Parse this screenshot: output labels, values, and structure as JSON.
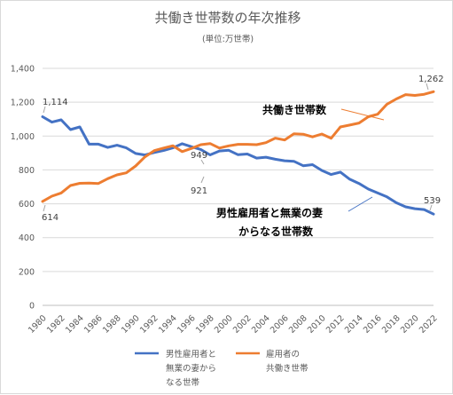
{
  "chart_data": {
    "type": "line",
    "title": "共働き世帯数の年次推移",
    "subtitle": "(単位:万世帯)",
    "x": [
      1980,
      1981,
      1982,
      1983,
      1984,
      1985,
      1986,
      1987,
      1988,
      1989,
      1990,
      1991,
      1992,
      1993,
      1994,
      1995,
      1996,
      1997,
      1998,
      1999,
      2000,
      2001,
      2002,
      2003,
      2004,
      2005,
      2006,
      2007,
      2008,
      2009,
      2010,
      2011,
      2012,
      2013,
      2014,
      2015,
      2016,
      2017,
      2018,
      2019,
      2020,
      2021,
      2022
    ],
    "x_tick_labels": [
      "1980",
      "1982",
      "1984",
      "1986",
      "1988",
      "1990",
      "1992",
      "1994",
      "1996",
      "1998",
      "2000",
      "2002",
      "2004",
      "2006",
      "2008",
      "2010",
      "2012",
      "2014",
      "2016",
      "2018",
      "2020",
      "2022"
    ],
    "y_tick_labels": [
      "0",
      "200",
      "400",
      "600",
      "800",
      "1,000",
      "1,200",
      "1,400"
    ],
    "ylim": [
      0,
      1400
    ],
    "grid": true,
    "legend_position": "bottom",
    "series": [
      {
        "name": "男性雇用者と無業の妻からなる世帯",
        "color": "#4472c4",
        "values": [
          1114,
          1082,
          1096,
          1038,
          1054,
          952,
          952,
          933,
          946,
          930,
          897,
          888,
          903,
          915,
          930,
          955,
          937,
          921,
          889,
          912,
          916,
          890,
          894,
          870,
          875,
          863,
          854,
          851,
          825,
          831,
          797,
          773,
          787,
          745,
          720,
          687,
          664,
          641,
          606,
          582,
          571,
          566,
          539
        ]
      },
      {
        "name": "雇用者の共働き世帯",
        "color": "#ed7d31",
        "values": [
          614,
          645,
          664,
          708,
          721,
          722,
          720,
          748,
          771,
          783,
          823,
          877,
          914,
          929,
          943,
          908,
          927,
          949,
          956,
          929,
          942,
          951,
          951,
          949,
          961,
          988,
          977,
          1013,
          1011,
          995,
          1012,
          987,
          1054,
          1065,
          1077,
          1114,
          1129,
          1188,
          1219,
          1245,
          1240,
          1247,
          1262
        ]
      }
    ],
    "data_labels": {
      "husband_1980": "1,114",
      "dual_1980": "614",
      "dual_1997": "949",
      "husband_1997": "921",
      "dual_2022": "1,262",
      "husband_2022": "539"
    },
    "callouts": {
      "dual": "共働き世帯数",
      "husband_line1": "男性雇用者と無業の妻",
      "husband_line2": "からなる世帯数"
    },
    "legend": {
      "husband_lines": [
        "男性雇用者と",
        "無業の妻から",
        "なる世帯"
      ],
      "dual_lines": [
        "雇用者の",
        "共働き世帯"
      ]
    }
  }
}
